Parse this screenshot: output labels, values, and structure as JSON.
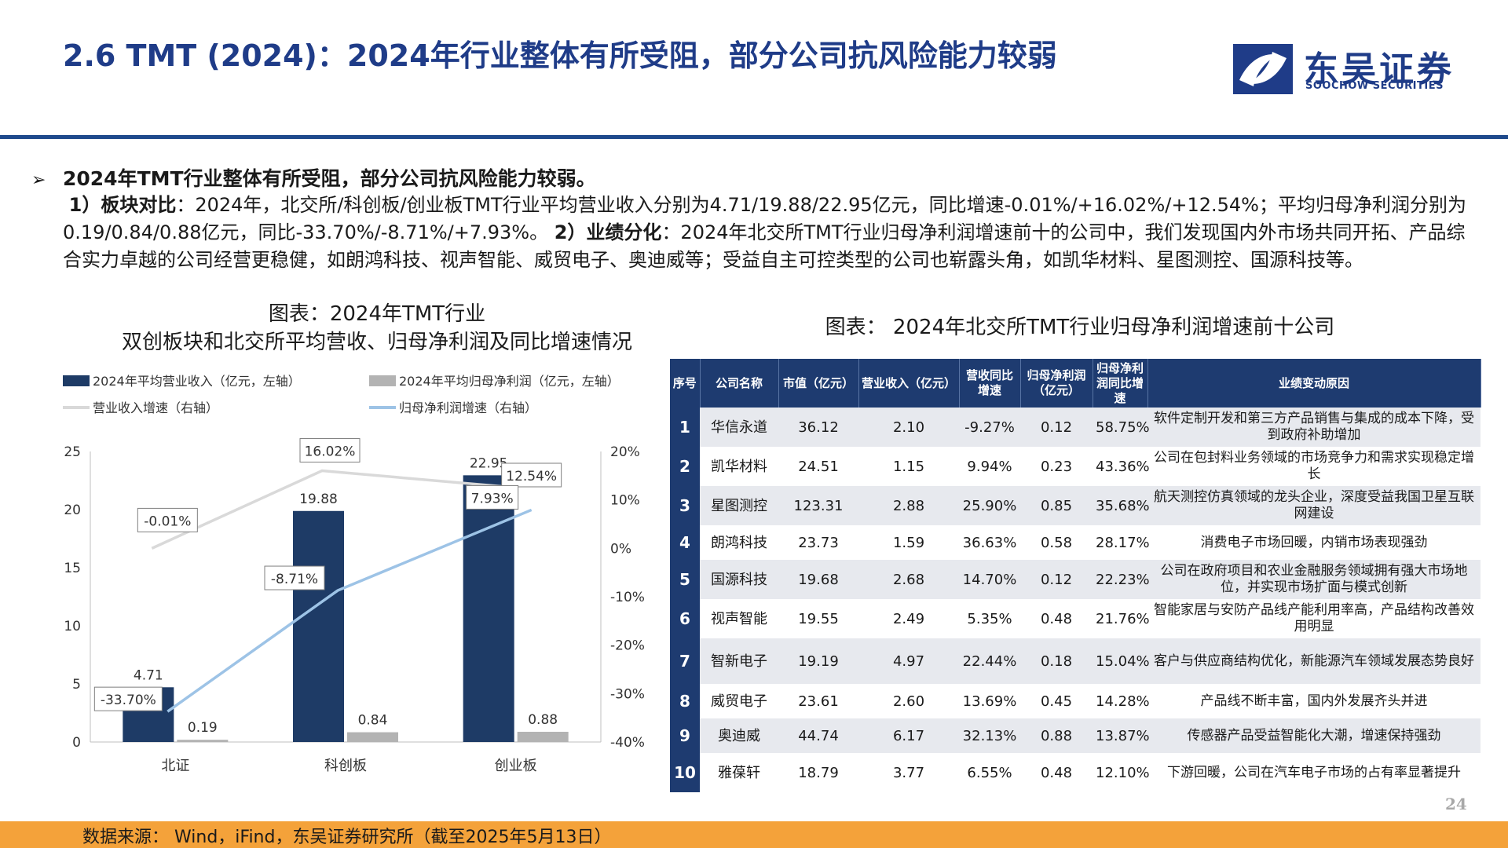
{
  "header": {
    "title": "2.6 TMT (2024)：2024年行业整体有所受阻，部分公司抗风险能力较弱"
  },
  "logo": {
    "name_cn": "东吴证券",
    "name_en": "SOOCHOW SECURITIES",
    "brand_color": "#1f3c88"
  },
  "summary": {
    "bullet_icon": "arrow-bullet-icon",
    "bullet_marker": "➢",
    "headline": "2024年TMT行业整体有所受阻，部分公司抗风险能力较弱。",
    "p1_label": "1）板块对比",
    "p1_text": "：2024年，北交所/科创板/创业板TMT行业平均营业收入分别为4.71/19.88/22.95亿元，同比增速-0.01%/+16.02%/+12.54%；平均归母净利润分别为0.19/0.84/0.88亿元，同比-33.70%/-8.71%/+7.93%。",
    "p2_label": "2）业绩分化",
    "p2_text": "：2024年北交所TMT行业归母净利润增速前十的公司中，我们发现国内外市场共同开拓、产品综合实力卓越的公司经营更稳健，如朗鸿科技、视声智能、威贸电子、奥迪威等；受益自主可控类型的公司也崭露头角，如凯华材料、星图测控、国源科技等。"
  },
  "left_chart": {
    "title_line1": "图表：2024年TMT行业",
    "title_line2": "双创板块和北交所平均营收、归母净利润及同比增速情况"
  },
  "chart_data": {
    "type": "bar",
    "categories": [
      "北证",
      "科创板",
      "创业板"
    ],
    "series": [
      {
        "name": "2024年平均营业收入（亿元，左轴）",
        "kind": "bar",
        "axis": "left",
        "color": "#1e3b66",
        "values": [
          4.71,
          19.88,
          22.95
        ],
        "labels": [
          "4.71",
          "19.88",
          "22.95"
        ]
      },
      {
        "name": "2024年平均归母净利润（亿元，左轴）",
        "kind": "bar",
        "axis": "left",
        "color": "#b3b3b3",
        "values": [
          0.19,
          0.84,
          0.88
        ],
        "labels": [
          "0.19",
          "0.84",
          "0.88"
        ]
      },
      {
        "name": "营业收入增速（右轴）",
        "kind": "line",
        "axis": "right",
        "color": "#d9d9d9",
        "values": [
          -0.01,
          16.02,
          12.54
        ],
        "labels": [
          "-0.01%",
          "16.02%",
          "12.54%"
        ]
      },
      {
        "name": "归母净利润增速（右轴）",
        "kind": "line",
        "axis": "right",
        "color": "#9dc3e6",
        "values": [
          -33.7,
          -8.71,
          7.93
        ],
        "labels": [
          "-33.70%",
          "-8.71%",
          "7.93%"
        ]
      }
    ],
    "y_left": {
      "range": [
        0,
        25
      ],
      "ticks": [
        "0",
        "5",
        "10",
        "15",
        "20",
        "25"
      ]
    },
    "y_right": {
      "range": [
        -40,
        20
      ],
      "ticks": [
        "-40%",
        "-30%",
        "-20%",
        "-10%",
        "0%",
        "10%",
        "20%"
      ]
    },
    "legend_position": "top",
    "grid": false
  },
  "right_table": {
    "title": "图表： 2024年北交所TMT行业归母净利润增速前十公司",
    "headers": [
      "序号",
      "公司名称",
      "市值（亿元）",
      "营业收入（亿元）",
      "营收同比增速",
      "归母净利润（亿元）",
      "归母净利润同比增速",
      "业绩变动原因"
    ],
    "rows": [
      [
        "1",
        "华信永道",
        "36.12",
        "2.10",
        "-9.27%",
        "0.12",
        "58.75%",
        "软件定制开发和第三方产品销售与集成的成本下降，受到政府补助增加"
      ],
      [
        "2",
        "凯华材料",
        "24.51",
        "1.15",
        "9.94%",
        "0.23",
        "43.36%",
        "公司在包封料业务领域的市场竞争力和需求实现稳定增长"
      ],
      [
        "3",
        "星图测控",
        "123.31",
        "2.88",
        "25.90%",
        "0.85",
        "35.68%",
        "航天测控仿真领域的龙头企业，深度受益我国卫星互联网建设"
      ],
      [
        "4",
        "朗鸿科技",
        "23.73",
        "1.59",
        "36.63%",
        "0.58",
        "28.17%",
        "消费电子市场回暖，内销市场表现强劲"
      ],
      [
        "5",
        "国源科技",
        "19.68",
        "2.68",
        "14.70%",
        "0.12",
        "22.23%",
        "公司在政府项目和农业金融服务领域拥有强大市场地位，并实现市场扩面与模式创新"
      ],
      [
        "6",
        "视声智能",
        "19.55",
        "2.49",
        "5.35%",
        "0.48",
        "21.76%",
        "智能家居与安防产品线产能利用率高，产品结构改善效用明显"
      ],
      [
        "7",
        "智新电子",
        "19.19",
        "4.97",
        "22.44%",
        "0.18",
        "15.04%",
        "客户与供应商结构优化，新能源汽车领域发展态势良好"
      ],
      [
        "8",
        "威贸电子",
        "23.61",
        "2.60",
        "13.69%",
        "0.45",
        "14.28%",
        "产品线不断丰富，国内外发展齐头并进"
      ],
      [
        "9",
        "奥迪威",
        "44.74",
        "6.17",
        "32.13%",
        "0.88",
        "13.87%",
        "传感器产品受益智能化大潮，增速保持强劲"
      ],
      [
        "10",
        "雅葆轩",
        "18.79",
        "3.77",
        "6.55%",
        "0.48",
        "12.10%",
        "下游回暖，公司在汽车电子市场的占有率显著提升"
      ]
    ]
  },
  "footer": {
    "source": "数据来源： Wind，iFind，东吴证券研究所（截至2025年5月13日）",
    "page_number": "24",
    "bar_color": "#f4a23a"
  }
}
